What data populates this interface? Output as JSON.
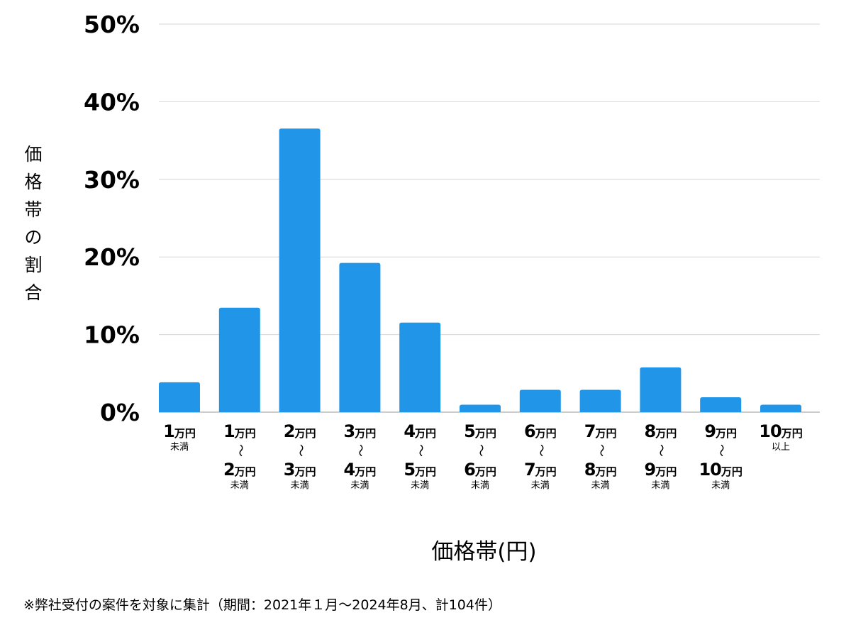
{
  "chart_data": {
    "type": "bar",
    "title": "",
    "xlabel": "価格帯(円)",
    "ylabel": "価格帯の割合",
    "ylim": [
      0,
      50
    ],
    "yticks": [
      "0%",
      "10%",
      "20%",
      "30%",
      "40%",
      "50%"
    ],
    "grid": true,
    "bar_color": "#2196e8",
    "categories": [
      {
        "from_num": "1",
        "from_unit": "万円",
        "from_suffix": "未満"
      },
      {
        "from_num": "1",
        "from_unit": "万円",
        "sep": "〜",
        "to_num": "2",
        "to_unit": "万円",
        "to_suffix": "未満"
      },
      {
        "from_num": "2",
        "from_unit": "万円",
        "sep": "〜",
        "to_num": "3",
        "to_unit": "万円",
        "to_suffix": "未満"
      },
      {
        "from_num": "3",
        "from_unit": "万円",
        "sep": "〜",
        "to_num": "4",
        "to_unit": "万円",
        "to_suffix": "未満"
      },
      {
        "from_num": "4",
        "from_unit": "万円",
        "sep": "〜",
        "to_num": "5",
        "to_unit": "万円",
        "to_suffix": "未満"
      },
      {
        "from_num": "5",
        "from_unit": "万円",
        "sep": "〜",
        "to_num": "6",
        "to_unit": "万円",
        "to_suffix": "未満"
      },
      {
        "from_num": "6",
        "from_unit": "万円",
        "sep": "〜",
        "to_num": "7",
        "to_unit": "万円",
        "to_suffix": "未満"
      },
      {
        "from_num": "7",
        "from_unit": "万円",
        "sep": "〜",
        "to_num": "8",
        "to_unit": "万円",
        "to_suffix": "未満"
      },
      {
        "from_num": "8",
        "from_unit": "万円",
        "sep": "〜",
        "to_num": "9",
        "to_unit": "万円",
        "to_suffix": "未満"
      },
      {
        "from_num": "9",
        "from_unit": "万円",
        "sep": "〜",
        "to_num": "10",
        "to_unit": "万円",
        "to_suffix": "未満"
      },
      {
        "from_num": "10",
        "from_unit": "万円",
        "from_suffix": "以上"
      }
    ],
    "values": [
      3.85,
      13.46,
      36.54,
      19.23,
      11.54,
      0.96,
      2.88,
      2.88,
      5.77,
      1.92,
      0.96
    ]
  },
  "note": "※弊社受付の案件を対象に集計（期間：2021年１月〜2024年8月、計104件）"
}
